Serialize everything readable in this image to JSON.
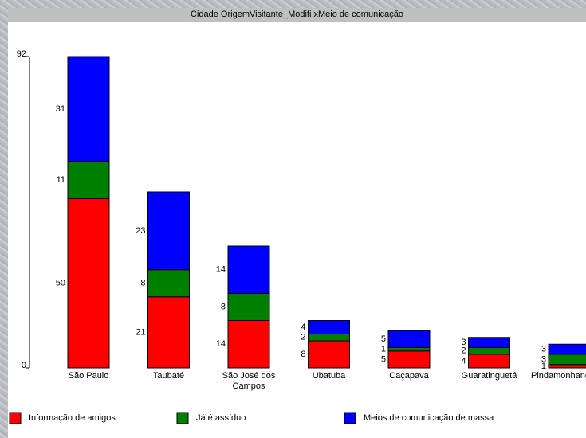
{
  "chart_data": {
    "type": "stacked_bar",
    "title": "Cidade OrigemVisitante_Modifi xMeio de comunicação",
    "categories": [
      "São Paulo",
      "Taubaté",
      "São José dos Campos",
      "Ubatuba",
      "Caçapava",
      "Guaratinguetá",
      "Pindamonhangaba"
    ],
    "series": [
      {
        "name": "Informação de amigos",
        "color": "#ff0000",
        "values": [
          50,
          21,
          14,
          8,
          5,
          4,
          1
        ]
      },
      {
        "name": "Já é assíduo",
        "color": "#008000",
        "values": [
          11,
          8,
          8,
          2,
          1,
          2,
          3
        ]
      },
      {
        "name": "Meios de comunicação de massa",
        "color": "#0000ff",
        "values": [
          31,
          23,
          14,
          4,
          5,
          3,
          3
        ]
      }
    ],
    "ylim": [
      0,
      92
    ],
    "yticks": [
      0,
      92
    ]
  }
}
